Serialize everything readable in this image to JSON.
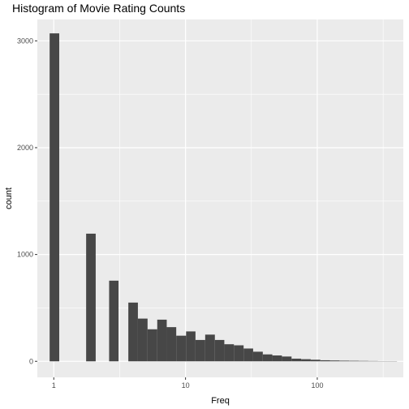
{
  "chart_data": {
    "type": "bar",
    "title": "Histogram of Movie Rating Counts",
    "xlabel": "Freq",
    "ylabel": "count",
    "x_scale": "log10",
    "xlim": [
      0.75,
      450
    ],
    "ylim": [
      -150,
      3200
    ],
    "x_ticks": [
      1,
      10,
      100
    ],
    "y_ticks": [
      0,
      1000,
      2000,
      3000
    ],
    "grid": true,
    "bins": [
      {
        "x0": 0.93,
        "x1": 1.1,
        "count": 3070
      },
      {
        "x0": 1.76,
        "x1": 2.08,
        "count": 1195
      },
      {
        "x0": 2.63,
        "x1": 3.1,
        "count": 755
      },
      {
        "x0": 3.68,
        "x1": 4.35,
        "count": 550
      },
      {
        "x0": 4.35,
        "x1": 5.15,
        "count": 400
      },
      {
        "x0": 5.15,
        "x1": 6.1,
        "count": 300
      },
      {
        "x0": 6.1,
        "x1": 7.2,
        "count": 390
      },
      {
        "x0": 7.2,
        "x1": 8.5,
        "count": 320
      },
      {
        "x0": 8.5,
        "x1": 10.1,
        "count": 240
      },
      {
        "x0": 10.1,
        "x1": 11.9,
        "count": 280
      },
      {
        "x0": 11.9,
        "x1": 14.1,
        "count": 200
      },
      {
        "x0": 14.1,
        "x1": 16.7,
        "count": 250
      },
      {
        "x0": 16.7,
        "x1": 19.7,
        "count": 200
      },
      {
        "x0": 19.7,
        "x1": 23.3,
        "count": 160
      },
      {
        "x0": 23.3,
        "x1": 27.6,
        "count": 150
      },
      {
        "x0": 27.6,
        "x1": 32.6,
        "count": 120
      },
      {
        "x0": 32.6,
        "x1": 38.6,
        "count": 90
      },
      {
        "x0": 38.6,
        "x1": 45.6,
        "count": 65
      },
      {
        "x0": 45.6,
        "x1": 53.9,
        "count": 55
      },
      {
        "x0": 53.9,
        "x1": 63.8,
        "count": 45
      },
      {
        "x0": 63.8,
        "x1": 75.4,
        "count": 25
      },
      {
        "x0": 75.4,
        "x1": 89.2,
        "count": 20
      },
      {
        "x0": 89.2,
        "x1": 105.5,
        "count": 15
      },
      {
        "x0": 105.5,
        "x1": 124.7,
        "count": 10
      },
      {
        "x0": 124.7,
        "x1": 147.5,
        "count": 8
      },
      {
        "x0": 147.5,
        "x1": 174.4,
        "count": 6
      },
      {
        "x0": 174.4,
        "x1": 206.2,
        "count": 5
      },
      {
        "x0": 206.2,
        "x1": 243.9,
        "count": 4
      },
      {
        "x0": 243.9,
        "x1": 288.4,
        "count": 3
      },
      {
        "x0": 288.4,
        "x1": 341,
        "count": 2
      },
      {
        "x0": 341,
        "x1": 403,
        "count": 2
      }
    ]
  },
  "colors": {
    "panel_background": "#ebebeb",
    "grid_major": "#ffffff",
    "bar_fill": "#474747",
    "tick_text": "#4d4d4d"
  }
}
